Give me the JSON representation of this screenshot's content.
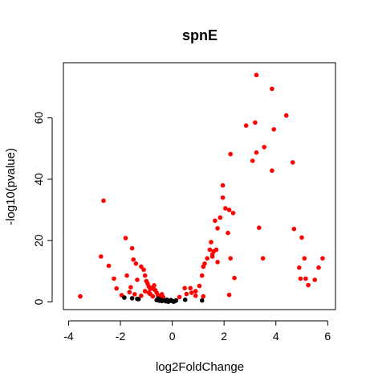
{
  "chart_data": {
    "type": "scatter",
    "title": "spnE",
    "xlabel": "log2FoldChange",
    "ylabel": "-log10(pvalue)",
    "xlim": [
      -4.2,
      6.3
    ],
    "ylim": [
      -2.5,
      78
    ],
    "x_ticks": [
      -4,
      -2,
      0,
      2,
      4,
      6
    ],
    "y_ticks": [
      0,
      20,
      40,
      60
    ],
    "grid": false,
    "legend": "none",
    "colors": {
      "significant": "#ff0000",
      "not_significant": "#000000"
    },
    "series": [
      {
        "key": "significant",
        "points": [
          [
            -3.55,
            1.8
          ],
          [
            -2.75,
            14.8
          ],
          [
            -2.65,
            33.0
          ],
          [
            -2.45,
            11.8
          ],
          [
            -2.25,
            7.6
          ],
          [
            -2.15,
            4.4
          ],
          [
            -1.95,
            2.2
          ],
          [
            -1.8,
            20.8
          ],
          [
            -1.75,
            8.6
          ],
          [
            -1.6,
            4.8
          ],
          [
            -1.55,
            17.5
          ],
          [
            -1.5,
            13.8
          ],
          [
            -1.4,
            12.5
          ],
          [
            -1.35,
            7.2
          ],
          [
            -1.65,
            3.2
          ],
          [
            -1.45,
            2.5
          ],
          [
            -1.2,
            11.5
          ],
          [
            -1.1,
            10.5
          ],
          [
            -1.05,
            8.6
          ],
          [
            -1.0,
            6.8
          ],
          [
            -0.95,
            6.0
          ],
          [
            -0.9,
            5.0
          ],
          [
            -1.05,
            3.5
          ],
          [
            -0.85,
            2.6
          ],
          [
            -0.8,
            4.5
          ],
          [
            -0.7,
            5.4
          ],
          [
            -0.65,
            3.8
          ],
          [
            -0.6,
            3.0
          ],
          [
            -0.55,
            2.2
          ],
          [
            -0.75,
            1.8
          ],
          [
            -0.5,
            1.5
          ],
          [
            -1.2,
            2.0
          ],
          [
            -0.9,
            3.0
          ],
          [
            -0.68,
            4.0
          ],
          [
            -0.85,
            4.2
          ],
          [
            -0.4,
            2.5
          ],
          [
            -0.35,
            1.6
          ],
          [
            0.28,
            1.6
          ],
          [
            0.48,
            4.5
          ],
          [
            0.7,
            4.5
          ],
          [
            0.75,
            3.0
          ],
          [
            0.9,
            3.5
          ],
          [
            1.05,
            5.2
          ],
          [
            1.2,
            1.8
          ],
          [
            0.9,
            2.0
          ],
          [
            0.55,
            2.6
          ],
          [
            1.15,
            8.6
          ],
          [
            1.2,
            11.5
          ],
          [
            1.25,
            12.5
          ],
          [
            1.35,
            14.2
          ],
          [
            1.45,
            17.0
          ],
          [
            1.55,
            15.5
          ],
          [
            1.5,
            19.5
          ],
          [
            1.6,
            16.5
          ],
          [
            1.75,
            13.0
          ],
          [
            1.65,
            26.5
          ],
          [
            1.75,
            24.0
          ],
          [
            1.85,
            27.5
          ],
          [
            1.95,
            34.0
          ],
          [
            1.95,
            38.0
          ],
          [
            1.7,
            17.0
          ],
          [
            1.55,
            14.8
          ],
          [
            2.05,
            30.5
          ],
          [
            2.15,
            22.5
          ],
          [
            2.2,
            30.0
          ],
          [
            2.35,
            29.0
          ],
          [
            2.25,
            14.2
          ],
          [
            2.4,
            7.8
          ],
          [
            2.2,
            2.3
          ],
          [
            2.25,
            48.2
          ],
          [
            2.85,
            57.5
          ],
          [
            3.1,
            46.0
          ],
          [
            3.2,
            58.5
          ],
          [
            3.25,
            74.0
          ],
          [
            3.25,
            48.7
          ],
          [
            3.35,
            24.2
          ],
          [
            3.5,
            14.2
          ],
          [
            3.55,
            50.5
          ],
          [
            3.85,
            69.5
          ],
          [
            3.85,
            42.8
          ],
          [
            3.92,
            56.3
          ],
          [
            4.4,
            60.8
          ],
          [
            4.65,
            45.5
          ],
          [
            4.7,
            23.8
          ],
          [
            4.9,
            11.2
          ],
          [
            4.95,
            7.6
          ],
          [
            5.0,
            21.0
          ],
          [
            5.1,
            14.2
          ],
          [
            5.15,
            7.6
          ],
          [
            5.25,
            5.5
          ],
          [
            5.5,
            7.2
          ],
          [
            5.65,
            11.2
          ],
          [
            5.8,
            14.2
          ]
        ]
      },
      {
        "key": "not_significant",
        "points": [
          [
            -1.85,
            1.4
          ],
          [
            -1.55,
            1.2
          ],
          [
            -1.35,
            1.0
          ],
          [
            -1.3,
            0.9
          ],
          [
            -0.6,
            0.6
          ],
          [
            -0.5,
            0.4
          ],
          [
            -0.45,
            0.8
          ],
          [
            -0.4,
            0.3
          ],
          [
            -0.3,
            0.5
          ],
          [
            -0.25,
            0.2
          ],
          [
            -0.2,
            0.7
          ],
          [
            -0.15,
            0.1
          ],
          [
            -0.1,
            0.4
          ],
          [
            -0.05,
            0.6
          ],
          [
            0.0,
            0.3
          ],
          [
            0.05,
            0.1
          ],
          [
            0.1,
            0.2
          ],
          [
            0.15,
            0.5
          ],
          [
            -0.55,
            1.1
          ],
          [
            0.5,
            0.7
          ],
          [
            1.15,
            0.5
          ]
        ]
      }
    ]
  }
}
